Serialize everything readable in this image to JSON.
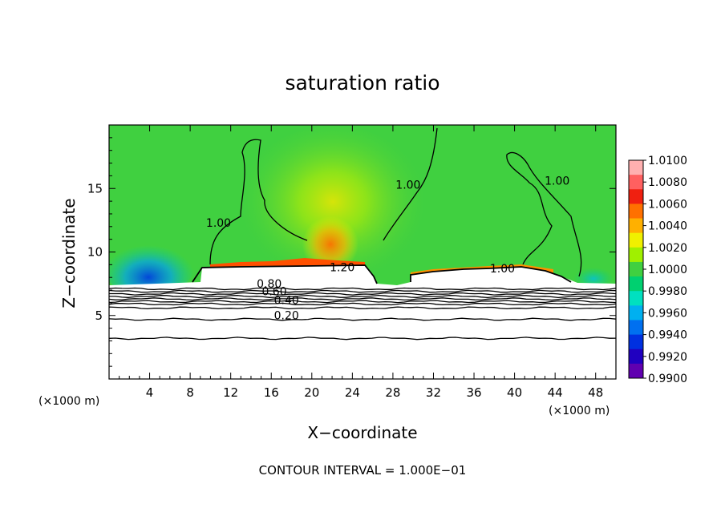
{
  "chart_data": {
    "type": "heatmap",
    "title": "saturation ratio",
    "xlabel": "X−coordinate",
    "ylabel": "Z−coordinate",
    "x_unit_left": "(×1000 m)",
    "x_unit_right": "(×1000 m)",
    "xlim": [
      0,
      50
    ],
    "ylim": [
      0,
      20
    ],
    "x_ticks": [
      4,
      8,
      12,
      16,
      20,
      24,
      28,
      32,
      36,
      40,
      44,
      48
    ],
    "y_ticks": [
      5,
      10,
      15
    ],
    "footer": "CONTOUR INTERVAL = 1.000E−01",
    "colorbar": {
      "min": 0.99,
      "max": 1.01,
      "labels": [
        "1.0100",
        "1.0080",
        "1.0060",
        "1.0040",
        "1.0020",
        "1.0000",
        "0.9980",
        "0.9960",
        "0.9940",
        "0.9920",
        "0.9900"
      ],
      "colors": [
        "#ffb0b0",
        "#ff6060",
        "#f02010",
        "#ff7000",
        "#ffb000",
        "#f0f000",
        "#a0f000",
        "#40d040",
        "#00d070",
        "#00e0c0",
        "#00b0f0",
        "#0070f0",
        "#0030e0",
        "#2000c0",
        "#6000b0"
      ]
    },
    "contour_labels": [
      {
        "text": "1.00",
        "x": 10.8,
        "y": 12.0
      },
      {
        "text": "1.00",
        "x": 29.5,
        "y": 15.0
      },
      {
        "text": "1.00",
        "x": 44.2,
        "y": 15.3
      },
      {
        "text": "1.20",
        "x": 23.0,
        "y": 8.5
      },
      {
        "text": "1.00",
        "x": 38.8,
        "y": 8.4
      },
      {
        "text": "0.80",
        "x": 15.8,
        "y": 7.2
      },
      {
        "text": "0.60",
        "x": 16.3,
        "y": 6.6
      },
      {
        "text": "0.40",
        "x": 17.5,
        "y": 5.9
      },
      {
        "text": "0.20",
        "x": 17.5,
        "y": 4.7
      }
    ],
    "background_contours_y": [
      7.1,
      6.9,
      6.7,
      6.5,
      6.3,
      6.1,
      5.9,
      5.6,
      4.7,
      3.2
    ]
  }
}
